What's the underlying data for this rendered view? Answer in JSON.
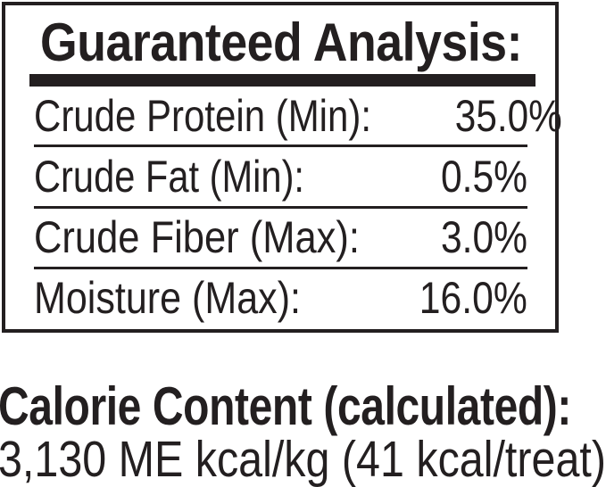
{
  "colors": {
    "ink": "#231f20",
    "background": "#ffffff"
  },
  "guaranteed_analysis": {
    "title": "Guaranteed Analysis:",
    "rows": [
      {
        "label": "Crude Protein (Min):",
        "value": "35.0%"
      },
      {
        "label": "Crude Fat (Min):",
        "value": "0.5%"
      },
      {
        "label": "Crude Fiber (Max):",
        "value": "3.0%"
      },
      {
        "label": "Moisture (Max):",
        "value": "16.0%"
      }
    ]
  },
  "calorie_content": {
    "heading": "Calorie Content (calculated):",
    "value": "3,130 ME kcal/kg (41 kcal/treat)"
  }
}
